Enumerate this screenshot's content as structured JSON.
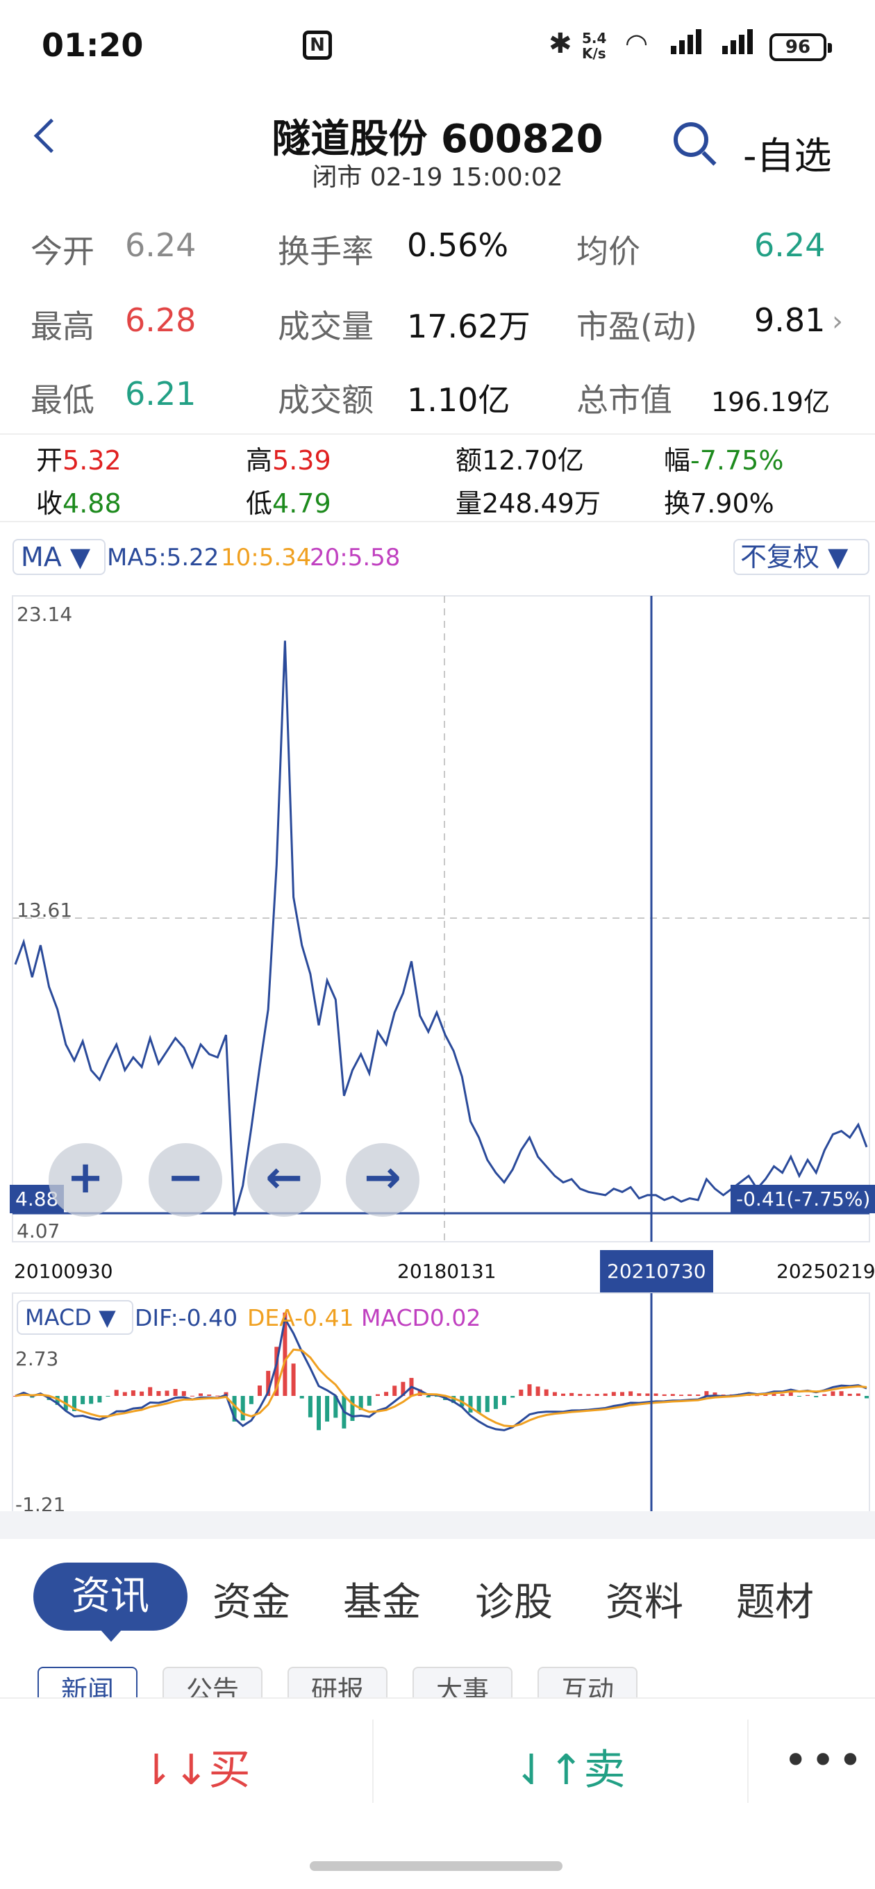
{
  "status": {
    "time": "01:20",
    "speed_top": "5.4",
    "speed_bot": "K/s",
    "network": "6",
    "battery": "96"
  },
  "header": {
    "title": "隧道股份 600820",
    "subtitle": "闭市 02-19 15:00:02",
    "watch_label": "-自选"
  },
  "quote": [
    [
      {
        "label": "今开",
        "value": "6.24"
      },
      {
        "label": "换手率",
        "value": "0.56%"
      },
      {
        "label": "均价",
        "value": "6.24"
      }
    ],
    [
      {
        "label": "最高",
        "value": "6.28"
      },
      {
        "label": "成交量",
        "value": "17.62万"
      },
      {
        "label": "市盈(动)",
        "value": "9.81"
      }
    ],
    [
      {
        "label": "最低",
        "value": "6.21"
      },
      {
        "label": "成交额",
        "value": "1.10亿"
      },
      {
        "label": "总市值",
        "value": "196.19亿"
      }
    ]
  ],
  "ohlc": {
    "open_label": "开",
    "open": "5.32",
    "high_label": "高",
    "high": "5.39",
    "amount_label": "额",
    "amount": "12.70亿",
    "change_label": "幅",
    "change": "-7.75%",
    "close_label": "收",
    "close": "4.88",
    "low_label": "低",
    "low": "4.79",
    "volume_label": "量",
    "volume": "248.49万",
    "turnover_label": "换",
    "turnover": "7.90%"
  },
  "ma": {
    "button": "MA ▼",
    "ma5": "MA5:5.22",
    "ma10": "10:5.34",
    "ma20": "20:5.58",
    "adjust_button": "不复权 ▼"
  },
  "chart_axes": {
    "y_top": "23.14",
    "y_mid": "13.61",
    "y_bottom": "4.07",
    "price_left": "4.88",
    "price_right": "-0.41(-7.75%)"
  },
  "dates": {
    "d1": "20100930",
    "d2": "20180131",
    "d3": "20210730",
    "d4": "20250219"
  },
  "controls": {
    "zoom_in": "+",
    "zoom_out": "−",
    "left": "←",
    "right": "→"
  },
  "macd": {
    "button": "MACD ▼",
    "dif": "DIF:-0.40",
    "dea": "DEA-0.41",
    "macd": "MACD0.02",
    "y_top": "2.73",
    "y_bottom": "-1.21"
  },
  "tabs": [
    "资讯",
    "资金",
    "基金",
    "诊股",
    "资料",
    "题材"
  ],
  "subtabs": [
    "新闻",
    "公告",
    "研报",
    "大事",
    "互动"
  ],
  "bottom": {
    "buy": "买",
    "sell": "卖",
    "more": "•••"
  },
  "colors": {
    "accent": "#2a4a9a",
    "up": "#e24545",
    "down": "#22a085",
    "ma10": "#f0a020",
    "ma20": "#c040c0"
  },
  "chart_data": [
    {
      "type": "line",
      "title": "",
      "x_labels": [
        "20100930",
        "20180131",
        "20210730",
        "20250219"
      ],
      "ylim": [
        4.07,
        23.14
      ],
      "series": [
        {
          "values": [
            11.9,
            12.6,
            11.5,
            12.5,
            11.2,
            10.5,
            9.4,
            8.9,
            9.5,
            8.6,
            8.3,
            8.9,
            9.4,
            8.6,
            9.0,
            8.7,
            9.6,
            8.8,
            9.2,
            9.6,
            9.3,
            8.7,
            9.4,
            9.1,
            9.0,
            9.7,
            4.07,
            5.0,
            6.8,
            8.7,
            10.5,
            15.0,
            22.0,
            14.0,
            12.5,
            11.6,
            10.0,
            11.4,
            10.8,
            7.8,
            8.6,
            9.1,
            8.5,
            9.8,
            9.4,
            10.4,
            11.0,
            12.0,
            10.3,
            9.8,
            10.4,
            9.7,
            9.2,
            8.4,
            7.0,
            6.5,
            5.8,
            5.4,
            5.1,
            5.5,
            6.1,
            6.5,
            5.9,
            5.6,
            5.3,
            5.1,
            5.2,
            4.9,
            4.8,
            4.75,
            4.7,
            4.9,
            4.8,
            4.95,
            4.6,
            4.7,
            4.7,
            4.55,
            4.65,
            4.5,
            4.6,
            4.55,
            5.2,
            4.9,
            4.7,
            4.9,
            5.1,
            5.3,
            4.9,
            5.2,
            5.6,
            5.4,
            5.9,
            5.3,
            5.8,
            5.4,
            6.1,
            6.6,
            6.7,
            6.5,
            6.9,
            6.2
          ]
        }
      ]
    },
    {
      "type": "bar",
      "title": "",
      "ylim": [
        -1.21,
        2.73
      ],
      "series": [
        {
          "name": "DIF",
          "values": [
            -0.4
          ]
        },
        {
          "name": "DEA",
          "values": [
            -0.41
          ]
        },
        {
          "name": "MACD",
          "values": [
            0.02
          ]
        }
      ]
    }
  ]
}
